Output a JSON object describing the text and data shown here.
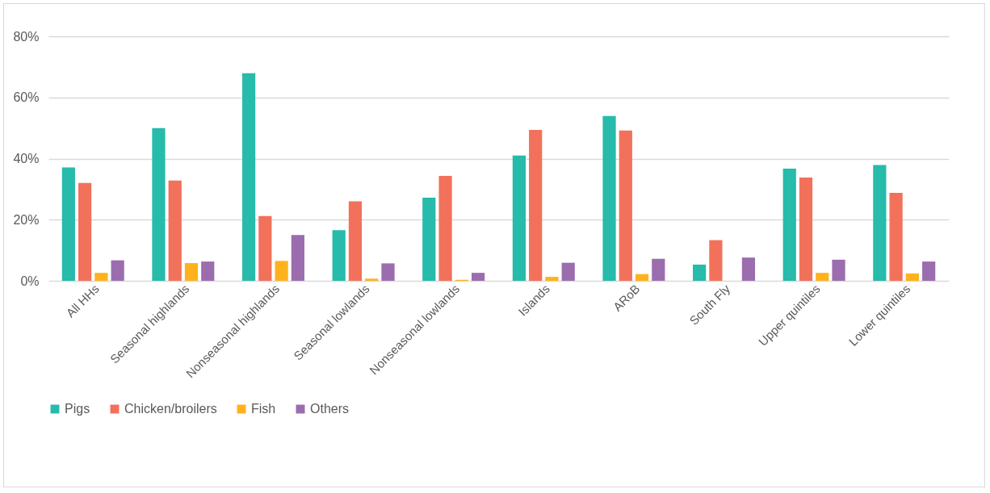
{
  "chart_data": {
    "type": "bar",
    "categories": [
      "All HHs",
      "Seasonal highlands",
      "Nonseasonal highlands",
      "Seasonal lowlands",
      "Nonseasonal lowlands",
      "Islands",
      "ARoB",
      "South Fly",
      "Upper quintiles",
      "Lower quintiles"
    ],
    "series": [
      {
        "name": "Pigs",
        "color": "#26bbaa",
        "values": [
          37.1,
          50.0,
          67.9,
          16.6,
          27.2,
          41.0,
          53.9,
          5.3,
          36.7,
          37.9
        ]
      },
      {
        "name": "Chicken/broilers",
        "color": "#f2715a",
        "values": [
          32.0,
          32.8,
          21.2,
          26.0,
          34.3,
          49.4,
          49.2,
          13.3,
          33.8,
          28.8
        ]
      },
      {
        "name": "Fish",
        "color": "#ffb21d",
        "values": [
          2.6,
          5.8,
          6.5,
          0.7,
          0.3,
          1.3,
          2.2,
          null,
          2.6,
          2.4
        ]
      },
      {
        "name": "Others",
        "color": "#9b6daf",
        "values": [
          6.7,
          6.3,
          15.0,
          5.7,
          2.6,
          5.9,
          7.2,
          7.6,
          6.9,
          6.3
        ]
      }
    ],
    "ylim": [
      0,
      80
    ],
    "yticks": [
      {
        "value": 0,
        "label": "0%"
      },
      {
        "value": 20,
        "label": "20%"
      },
      {
        "value": 40,
        "label": "40%"
      },
      {
        "value": 60,
        "label": "60%"
      },
      {
        "value": 80,
        "label": "80%"
      }
    ],
    "grid": "y",
    "legend": "bottom"
  }
}
